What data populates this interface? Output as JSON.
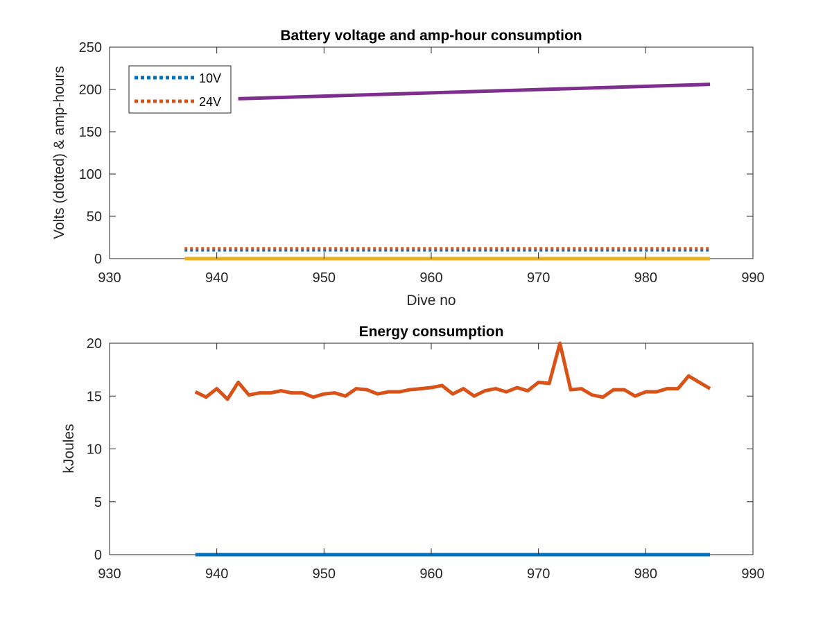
{
  "chart_data": [
    {
      "type": "line",
      "title": "Battery voltage and amp-hour consumption",
      "xlabel": "Dive no",
      "ylabel": "Volts (dotted) & amp-hours",
      "xlim": [
        930,
        990
      ],
      "ylim": [
        0,
        250
      ],
      "xticks": [
        930,
        940,
        950,
        960,
        970,
        980,
        990
      ],
      "yticks": [
        0,
        50,
        100,
        150,
        200,
        250
      ],
      "legend_position": "top-left",
      "grid": false,
      "series": [
        {
          "name": "10V",
          "color": "#0072BD",
          "style": "dotted",
          "x": [
            937,
            986
          ],
          "y": [
            10,
            10
          ]
        },
        {
          "name": "24V",
          "color": "#D95319",
          "style": "dotted",
          "x": [
            937,
            986
          ],
          "y": [
            12,
            12
          ]
        },
        {
          "color": "#EDB120",
          "style": "solid",
          "x": [
            937,
            986
          ],
          "y": [
            0,
            0
          ]
        },
        {
          "color": "#7E2F8E",
          "style": "solid",
          "x": [
            942,
            986
          ],
          "y": [
            189,
            206
          ]
        }
      ]
    },
    {
      "type": "line",
      "title": "Energy consumption",
      "xlabel": "",
      "ylabel": "kJoules",
      "xlim": [
        930,
        990
      ],
      "ylim": [
        0,
        20
      ],
      "xticks": [
        930,
        940,
        950,
        960,
        970,
        980,
        990
      ],
      "yticks": [
        0,
        5,
        10,
        15,
        20
      ],
      "grid": false,
      "series": [
        {
          "color": "#0072BD",
          "style": "solid",
          "x": [
            938,
            986
          ],
          "y": [
            0,
            0
          ]
        },
        {
          "color": "#D95319",
          "style": "solid",
          "x": [
            938,
            939,
            940,
            941,
            942,
            943,
            944,
            945,
            946,
            947,
            948,
            949,
            950,
            951,
            952,
            953,
            954,
            955,
            956,
            957,
            958,
            959,
            960,
            961,
            962,
            963,
            964,
            965,
            966,
            967,
            968,
            969,
            970,
            971,
            972,
            973,
            974,
            975,
            976,
            977,
            978,
            979,
            980,
            981,
            982,
            983,
            984,
            985,
            986
          ],
          "y": [
            15.4,
            14.9,
            15.7,
            14.7,
            16.3,
            15.1,
            15.3,
            15.3,
            15.5,
            15.3,
            15.3,
            14.9,
            15.2,
            15.3,
            15.0,
            15.7,
            15.6,
            15.2,
            15.4,
            15.4,
            15.6,
            15.7,
            15.8,
            16.0,
            15.2,
            15.7,
            15.0,
            15.5,
            15.7,
            15.4,
            15.8,
            15.5,
            16.3,
            16.2,
            20.0,
            15.6,
            15.7,
            15.1,
            14.9,
            15.6,
            15.6,
            15.0,
            15.4,
            15.4,
            15.7,
            15.7,
            16.9,
            16.3,
            15.7
          ]
        }
      ]
    }
  ]
}
